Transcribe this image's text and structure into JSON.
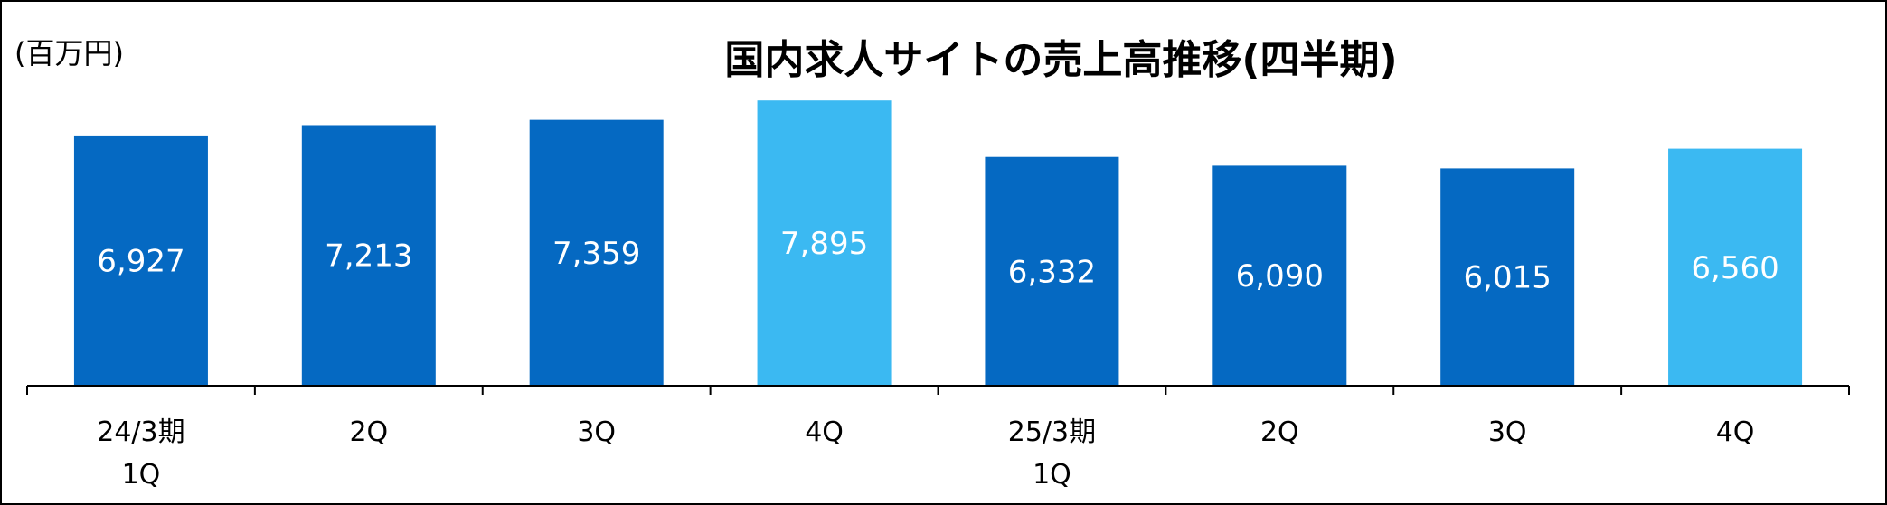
{
  "chart_data": {
    "type": "bar",
    "title": "国内求人サイトの売上高推移(四半期)",
    "unit": "(百万円)",
    "categories": [
      [
        "24/3期",
        "1Q"
      ],
      [
        "2Q"
      ],
      [
        "3Q"
      ],
      [
        "4Q"
      ],
      [
        "25/3期",
        "1Q"
      ],
      [
        "2Q"
      ],
      [
        "3Q"
      ],
      [
        "4Q"
      ]
    ],
    "values": [
      6927,
      7213,
      7359,
      7895,
      6332,
      6090,
      6015,
      6560
    ],
    "value_labels": [
      "6,927",
      "7,213",
      "7,359",
      "7,895",
      "6,332",
      "6,090",
      "6,015",
      "6,560"
    ],
    "highlight_indices": [
      3,
      7
    ],
    "colors": {
      "bar": "#0569C2",
      "highlight": "#3BB9F2",
      "label": "#ffffff"
    },
    "ylim": [
      0,
      9000
    ],
    "grid": false,
    "legend": "none"
  }
}
